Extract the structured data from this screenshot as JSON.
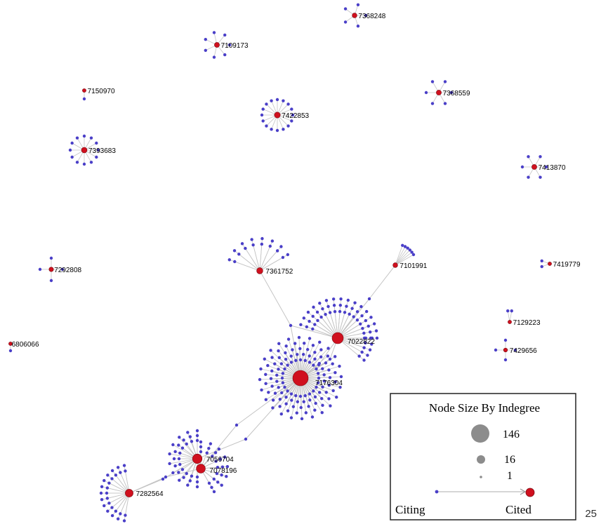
{
  "colors": {
    "citing_node": "#4a3fc8",
    "cited_node": "#d0101e",
    "edge": "#c4c4c4",
    "legend_size_node": "#8c8c8c",
    "legend_border": "#222222"
  },
  "graph": {
    "hubs": [
      {
        "id": "7368248",
        "indegree": 5
      },
      {
        "id": "7109173",
        "indegree": 7
      },
      {
        "id": "7150970",
        "indegree": 1
      },
      {
        "id": "7422853",
        "indegree": 14
      },
      {
        "id": "7368559",
        "indegree": 6
      },
      {
        "id": "7393683",
        "indegree": 12
      },
      {
        "id": "7413870",
        "indegree": 6
      },
      {
        "id": "7361752",
        "indegree": 16
      },
      {
        "id": "7101991",
        "indegree": 6
      },
      {
        "id": "7419779",
        "indegree": 2
      },
      {
        "id": "7292808",
        "indegree": 4
      },
      {
        "id": "7129223",
        "indegree": 2
      },
      {
        "id": "6806066",
        "indegree": 1
      },
      {
        "id": "7022822",
        "indegree": 60
      },
      {
        "id": "7429656",
        "indegree": 4
      },
      {
        "id": "7176304",
        "indegree": 146
      },
      {
        "id": "7056704",
        "indegree": 45
      },
      {
        "id": "7078196",
        "indegree": 40
      },
      {
        "id": "7282564",
        "indegree": 26
      }
    ]
  },
  "legend": {
    "title": "Node Size By Indegree",
    "sizes": [
      "146",
      "16",
      "1"
    ],
    "citing_label": "Citing",
    "cited_label": "Cited"
  },
  "page_number": "25"
}
